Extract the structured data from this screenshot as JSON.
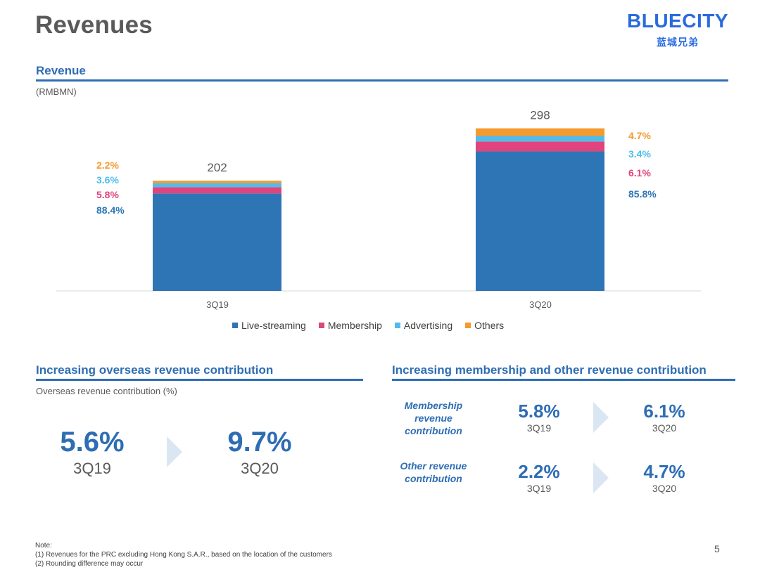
{
  "page": {
    "title": "Revenues",
    "logo_en": "BLUECITY",
    "logo_cn": "蓝城兄弟",
    "page_number": "5"
  },
  "revenue": {
    "heading": "Revenue",
    "unit": "(RMBMN)"
  },
  "chart_data": {
    "type": "bar",
    "stacked": true,
    "title": "Revenue",
    "ylabel": "(RMBMN)",
    "categories": [
      "3Q19",
      "3Q20"
    ],
    "totals": [
      202,
      298
    ],
    "series": [
      {
        "name": "Live-streaming",
        "color": "#2e75b6",
        "share_labels": [
          "88.4%",
          "85.8%"
        ],
        "shares": [
          88.4,
          85.8
        ]
      },
      {
        "name": "Membership",
        "color": "#e0447c",
        "share_labels": [
          "5.8%",
          "6.1%"
        ],
        "shares": [
          5.8,
          6.1
        ]
      },
      {
        "name": "Advertising",
        "color": "#4fbdec",
        "share_labels": [
          "3.6%",
          "3.4%"
        ],
        "shares": [
          3.6,
          3.4
        ]
      },
      {
        "name": "Others",
        "color": "#f59a2e",
        "share_labels": [
          "2.2%",
          "4.7%"
        ],
        "shares": [
          2.2,
          4.7
        ]
      }
    ],
    "ylim": [
      0,
      340
    ],
    "grid": false,
    "legend_position": "bottom"
  },
  "overseas": {
    "heading": "Increasing overseas revenue contribution",
    "subtitle": "Overseas revenue contribution (%)",
    "from_value": "5.6%",
    "from_period": "3Q19",
    "to_value": "9.7%",
    "to_period": "3Q20"
  },
  "membership_other": {
    "heading": "Increasing membership and other revenue contribution",
    "rows": [
      {
        "label": "Membership revenue contribution",
        "from_value": "5.8%",
        "from_period": "3Q19",
        "to_value": "6.1%",
        "to_period": "3Q20"
      },
      {
        "label": "Other revenue contribution",
        "from_value": "2.2%",
        "from_period": "3Q19",
        "to_value": "4.7%",
        "to_period": "3Q20"
      }
    ]
  },
  "notes": {
    "title": "Note:",
    "line1": "(1)    Revenues for the PRC excluding Hong Kong S.A.R., based on the location of the customers",
    "line2": "(2)    Rounding difference may occur"
  }
}
